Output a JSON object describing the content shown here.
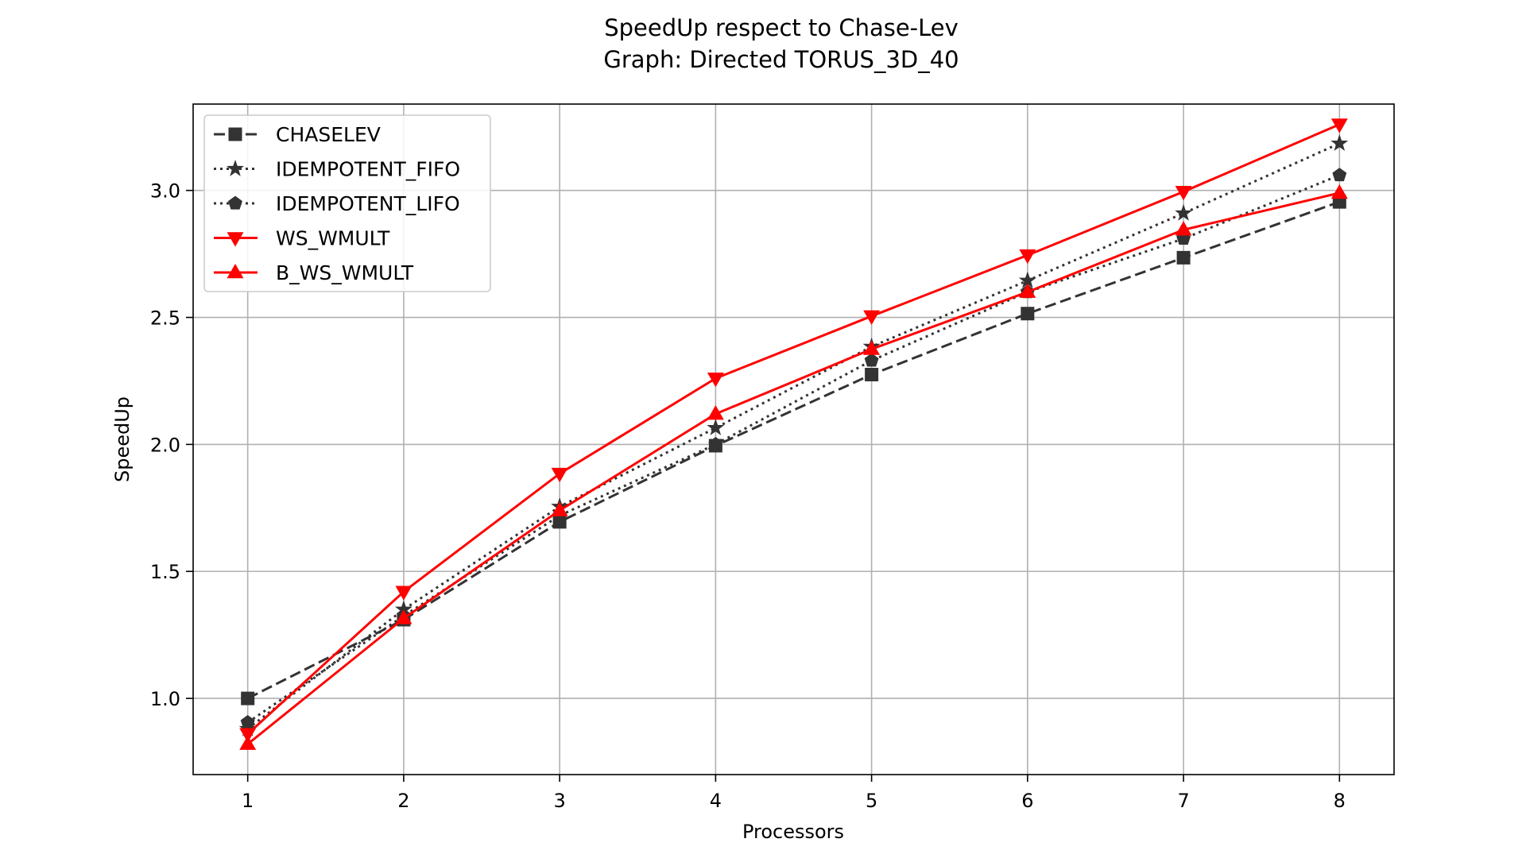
{
  "chart_data": {
    "type": "line",
    "title": "SpeedUp respect to Chase-Lev",
    "subtitle": "Graph: Directed TORUS_3D_40",
    "xlabel": "Processors",
    "ylabel": "SpeedUp",
    "x": [
      1,
      2,
      3,
      4,
      5,
      6,
      7,
      8
    ],
    "xlim": [
      0.65,
      8.35
    ],
    "ylim": [
      0.7,
      3.34
    ],
    "xticks": [
      "1",
      "2",
      "3",
      "4",
      "5",
      "6",
      "7",
      "8"
    ],
    "yticks": [
      "1.0",
      "1.5",
      "2.0",
      "2.5",
      "3.0"
    ],
    "ytick_values": [
      1.0,
      1.5,
      2.0,
      2.5,
      3.0
    ],
    "grid": true,
    "legend_position": "upper-left",
    "series": [
      {
        "name": "CHASELEV",
        "color": "#333333",
        "dash": "dashed",
        "marker": "square",
        "values": [
          1.0,
          1.31,
          1.695,
          1.995,
          2.275,
          2.515,
          2.735,
          2.955
        ]
      },
      {
        "name": "IDEMPOTENT_FIFO",
        "color": "#333333",
        "dash": "dotted",
        "marker": "star",
        "values": [
          0.88,
          1.35,
          1.755,
          2.065,
          2.385,
          2.645,
          2.91,
          3.185
        ]
      },
      {
        "name": "IDEMPOTENT_LIFO",
        "color": "#333333",
        "dash": "dotted",
        "marker": "pentagon",
        "values": [
          0.905,
          1.325,
          1.72,
          2.0,
          2.33,
          2.6,
          2.81,
          3.06
        ]
      },
      {
        "name": "WS_WMULT",
        "color": "#ff0000",
        "dash": "solid",
        "marker": "triangle-down",
        "values": [
          0.86,
          1.42,
          1.885,
          2.26,
          2.505,
          2.745,
          2.995,
          3.26
        ]
      },
      {
        "name": "B_WS_WMULT",
        "color": "#ff0000",
        "dash": "solid",
        "marker": "triangle-up",
        "values": [
          0.82,
          1.315,
          1.74,
          2.12,
          2.375,
          2.6,
          2.845,
          2.99
        ]
      }
    ]
  }
}
